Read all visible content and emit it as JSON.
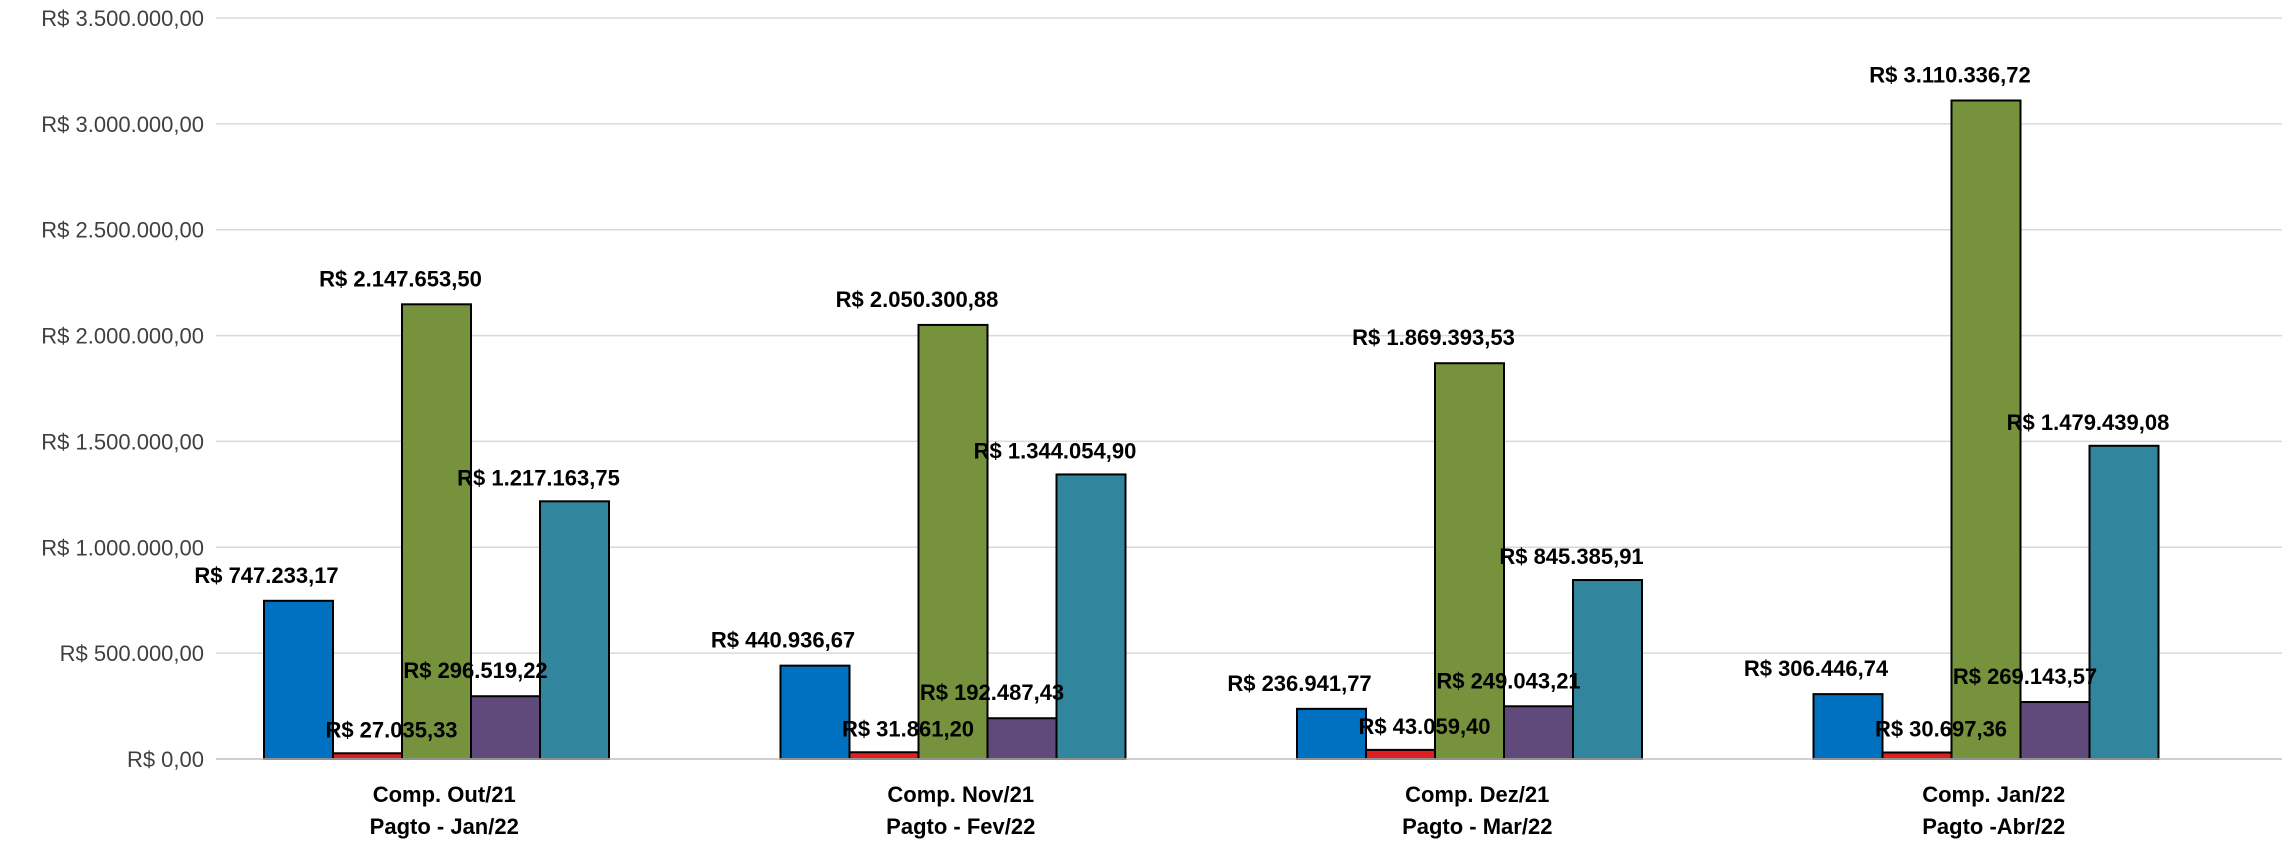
{
  "chart_data": {
    "type": "bar",
    "categories": [
      [
        "Comp. Out/21",
        "Pagto - Jan/22"
      ],
      [
        "Comp. Nov/21",
        "Pagto - Fev/22"
      ],
      [
        "Comp. Dez/21",
        "Pagto - Mar/22"
      ],
      [
        "Comp. Jan/22",
        "Pagto -Abr/22"
      ]
    ],
    "series": [
      {
        "color": "#0070C0",
        "values": [
          747233.17,
          440936.67,
          236941.77,
          306446.74
        ],
        "labels": [
          "R$ 747.233,17",
          "R$ 440.936,67",
          "R$ 236.941,77",
          "R$ 306.446,74"
        ]
      },
      {
        "color": "#E02020",
        "values": [
          27035.33,
          31861.2,
          43059.4,
          30697.36
        ],
        "labels": [
          "R$ 27.035,33",
          "R$ 31.861,20",
          "R$ 43.059,40",
          "R$ 30.697,36"
        ]
      },
      {
        "color": "#76923C",
        "values": [
          2147653.5,
          2050300.88,
          1869393.53,
          3110336.72
        ],
        "labels": [
          "R$ 2.147.653,50",
          "R$ 2.050.300,88",
          "R$ 1.869.393,53",
          "R$ 3.110.336,72"
        ]
      },
      {
        "color": "#604A7B",
        "values": [
          296519.22,
          192487.43,
          249043.21,
          269143.57
        ],
        "labels": [
          "R$ 296.519,22",
          "R$ 192.487,43",
          "R$ 249.043,21",
          "R$ 269.143,57"
        ]
      },
      {
        "color": "#31859C",
        "values": [
          1217163.75,
          1344054.9,
          845385.91,
          1479439.08
        ],
        "labels": [
          "R$ 1.217.163,75",
          "R$ 1.344.054,90",
          "R$ 845.385,91",
          "R$ 1.479.439,08"
        ]
      }
    ],
    "ylim": [
      0,
      3500000
    ],
    "yticks": [
      0,
      500000,
      1000000,
      1500000,
      2000000,
      2500000,
      3000000,
      3500000
    ],
    "ytick_labels": [
      "R$ 0,00",
      "R$ 500.000,00",
      "R$ 1.000.000,00",
      "R$ 1.500.000,00",
      "R$ 2.000.000,00",
      "R$ 2.500.000,00",
      "R$ 3.000.000,00",
      "R$ 3.500.000,00"
    ],
    "grid": true,
    "legend": "none"
  }
}
